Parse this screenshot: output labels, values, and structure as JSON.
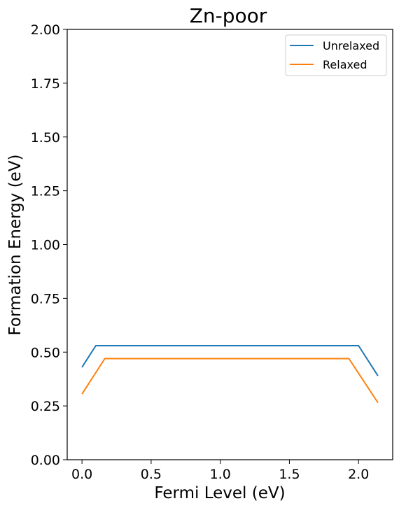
{
  "chart_data": {
    "type": "line",
    "title": "Zn-poor",
    "xlabel": "Fermi Level (eV)",
    "ylabel": "Formation Energy (eV)",
    "xlim": [
      -0.107,
      2.247
    ],
    "ylim": [
      0,
      2
    ],
    "xticks": [
      0.0,
      0.5,
      1.0,
      1.5,
      2.0
    ],
    "xtick_labels": [
      "0.0",
      "0.5",
      "1.0",
      "1.5",
      "2.0"
    ],
    "yticks": [
      0.0,
      0.25,
      0.5,
      0.75,
      1.0,
      1.25,
      1.5,
      1.75,
      2.0
    ],
    "ytick_labels": [
      "0.00",
      "0.25",
      "0.50",
      "0.75",
      "1.00",
      "1.25",
      "1.50",
      "1.75",
      "2.00"
    ],
    "grid": false,
    "legend_position": "top-right",
    "series": [
      {
        "name": "Unrelaxed",
        "color": "#1f77b4",
        "x": [
          0.0,
          0.1,
          2.0,
          2.14
        ],
        "y": [
          0.43,
          0.53,
          0.53,
          0.39
        ]
      },
      {
        "name": "Relaxed",
        "color": "#ff7f0e",
        "x": [
          0.0,
          0.165,
          1.93,
          2.14
        ],
        "y": [
          0.305,
          0.47,
          0.47,
          0.265
        ]
      }
    ]
  }
}
